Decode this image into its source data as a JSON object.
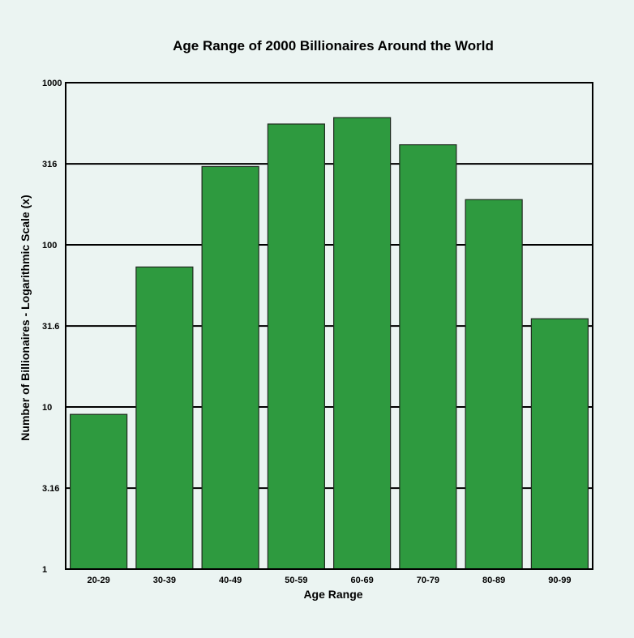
{
  "chart_data": {
    "type": "bar",
    "title": "Age Range of 2000 Billionaires Around the World",
    "xlabel": "Age Range",
    "ylabel": "Number of Billionaires - Logarithmic Scale (x)",
    "y_scale": "log",
    "ylim": [
      1,
      1000
    ],
    "y_ticks": [
      1,
      3.16,
      10,
      31.6,
      100,
      316,
      1000
    ],
    "y_tick_labels": [
      "1",
      "3.16",
      "10",
      "31.6",
      "100",
      "316",
      "1000"
    ],
    "grid": "horizontal",
    "legend": "none",
    "categories": [
      "20-29",
      "30-39",
      "40-49",
      "50-59",
      "60-69",
      "70-79",
      "80-89",
      "90-99"
    ],
    "values": [
      9,
      73,
      304,
      556,
      609,
      414,
      190,
      35
    ],
    "bar_color": "#2e9a3f",
    "bar_edge_color": "#1f2a1f",
    "background_color": "#ebf4f2"
  }
}
